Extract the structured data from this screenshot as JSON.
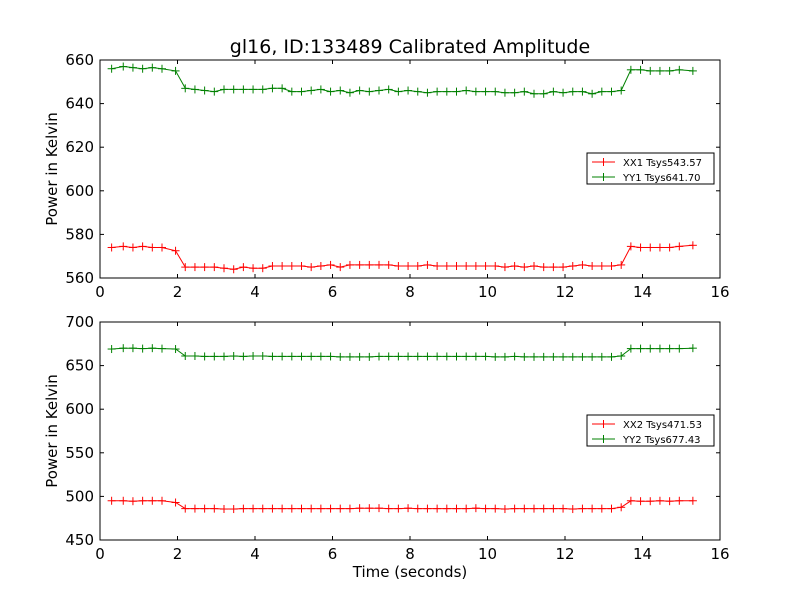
{
  "colors": {
    "red": "#ff0000",
    "green": "#008000"
  },
  "chart_data": [
    {
      "type": "line",
      "title": "gl16, ID:133489 Calibrated Amplitude",
      "xlabel": "",
      "ylabel": "Power in Kelvin",
      "xlim": [
        0,
        16
      ],
      "ylim": [
        560,
        660
      ],
      "xticks": [
        "0",
        "2",
        "4",
        "6",
        "8",
        "10",
        "12",
        "14",
        "16"
      ],
      "yticks": [
        "560",
        "580",
        "600",
        "620",
        "640",
        "660"
      ],
      "legend_position": "center-right",
      "x": [
        0.3,
        0.6,
        0.85,
        1.1,
        1.35,
        1.6,
        1.95,
        2.2,
        2.45,
        2.7,
        2.95,
        3.2,
        3.45,
        3.7,
        3.95,
        4.2,
        4.45,
        4.7,
        4.95,
        5.2,
        5.45,
        5.7,
        5.95,
        6.2,
        6.45,
        6.7,
        6.95,
        7.2,
        7.45,
        7.7,
        7.95,
        8.2,
        8.45,
        8.7,
        8.95,
        9.2,
        9.45,
        9.7,
        9.95,
        10.2,
        10.45,
        10.7,
        10.95,
        11.2,
        11.45,
        11.7,
        11.95,
        12.2,
        12.45,
        12.7,
        12.95,
        13.2,
        13.45,
        13.7,
        13.95,
        14.2,
        14.45,
        14.7,
        14.95,
        15.3
      ],
      "series": [
        {
          "name": "XX1 Tsys543.57",
          "color": "#ff0000",
          "values": [
            574,
            574.5,
            574,
            574.5,
            574,
            574,
            572.5,
            565,
            565,
            565,
            565,
            564.5,
            564,
            565,
            564.5,
            564.5,
            565.5,
            565.5,
            565.5,
            565.5,
            565,
            565.5,
            566,
            565,
            566,
            566,
            566,
            566,
            566,
            565.5,
            565.5,
            565.5,
            566,
            565.5,
            565.5,
            565.5,
            565.5,
            565.5,
            565.5,
            565.5,
            565,
            565.5,
            565,
            565.5,
            565,
            565,
            565,
            565.5,
            566,
            565.5,
            565.5,
            565.5,
            566,
            574.5,
            574,
            574,
            574,
            574,
            574.5,
            575
          ]
        },
        {
          "name": "YY1 Tsys641.70",
          "color": "#008000",
          "values": [
            656,
            657,
            656.5,
            656,
            656.5,
            656,
            655,
            647,
            646.5,
            646,
            645.5,
            646.5,
            646.5,
            646.5,
            646.5,
            646.5,
            647,
            647,
            645.5,
            645.5,
            646,
            646.5,
            645.5,
            646,
            645,
            646,
            645.5,
            646,
            646.5,
            645.5,
            646,
            645.5,
            645,
            645.5,
            645.5,
            645.5,
            646,
            645.5,
            645.5,
            645.5,
            645,
            645,
            645.5,
            644.5,
            644.5,
            645.5,
            645,
            645.5,
            645.5,
            644.5,
            645.5,
            645.5,
            646,
            655.5,
            655.5,
            655,
            655,
            655,
            655.5,
            655
          ]
        }
      ]
    },
    {
      "type": "line",
      "title": "",
      "xlabel": "Time (seconds)",
      "ylabel": "Power in Kelvin",
      "xlim": [
        0,
        16
      ],
      "ylim": [
        450,
        700
      ],
      "xticks": [
        "0",
        "2",
        "4",
        "6",
        "8",
        "10",
        "12",
        "14",
        "16"
      ],
      "yticks": [
        "450",
        "500",
        "550",
        "600",
        "650",
        "700"
      ],
      "legend_position": "center-right",
      "x": [
        0.3,
        0.6,
        0.85,
        1.1,
        1.35,
        1.6,
        1.95,
        2.2,
        2.45,
        2.7,
        2.95,
        3.2,
        3.45,
        3.7,
        3.95,
        4.2,
        4.45,
        4.7,
        4.95,
        5.2,
        5.45,
        5.7,
        5.95,
        6.2,
        6.45,
        6.7,
        6.95,
        7.2,
        7.45,
        7.7,
        7.95,
        8.2,
        8.45,
        8.7,
        8.95,
        9.2,
        9.45,
        9.7,
        9.95,
        10.2,
        10.45,
        10.7,
        10.95,
        11.2,
        11.45,
        11.7,
        11.95,
        12.2,
        12.45,
        12.7,
        12.95,
        13.2,
        13.45,
        13.7,
        13.95,
        14.2,
        14.45,
        14.7,
        14.95,
        15.3
      ],
      "series": [
        {
          "name": "XX2 Tsys471.53",
          "color": "#ff0000",
          "values": [
            495,
            495,
            494.5,
            495,
            495,
            495,
            493,
            486,
            486,
            486,
            486,
            485.5,
            485.5,
            486,
            486,
            486,
            486,
            486,
            486,
            486,
            486,
            486,
            486,
            486,
            486,
            486.5,
            486.5,
            486.5,
            486,
            486,
            486.5,
            486,
            486,
            486,
            486,
            486,
            486,
            486.5,
            486,
            486,
            485.5,
            486,
            486,
            486,
            486,
            486,
            486,
            485.5,
            486,
            486,
            486,
            486,
            487.5,
            495,
            494.5,
            494.5,
            495,
            494.5,
            495,
            495
          ]
        },
        {
          "name": "YY2 Tsys677.43",
          "color": "#008000",
          "values": [
            669,
            670,
            670,
            669.5,
            670,
            669.5,
            669,
            661,
            661,
            660.5,
            660.5,
            660.5,
            661,
            660.5,
            661,
            661,
            660.5,
            660.5,
            660.5,
            660.5,
            660.5,
            660.5,
            660.5,
            660,
            660,
            660,
            660,
            660.5,
            660.5,
            660.5,
            660.5,
            660.5,
            660.5,
            660.5,
            660.5,
            660.5,
            660.5,
            660.5,
            660.5,
            660,
            660,
            660.5,
            660,
            660,
            660,
            660,
            660,
            660,
            660,
            660,
            660,
            660,
            661,
            669.5,
            669.5,
            669.5,
            669.5,
            669.5,
            669.5,
            670
          ]
        }
      ]
    }
  ]
}
